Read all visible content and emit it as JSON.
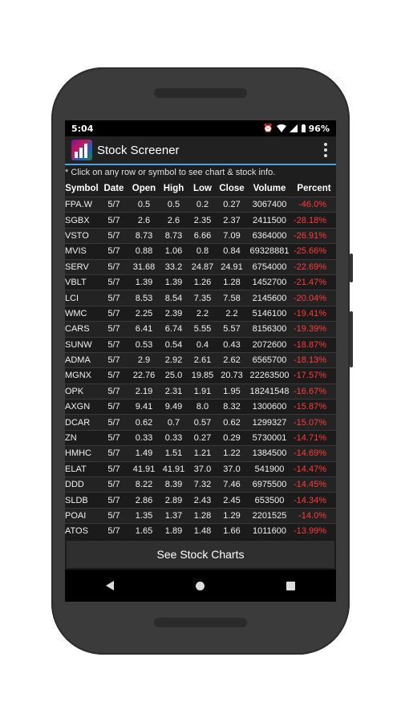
{
  "status": {
    "time": "5:04",
    "battery": "96%"
  },
  "app": {
    "title": "Stock Screener"
  },
  "note": "* Click on any row or symbol to see chart & stock info.",
  "table": {
    "headers": [
      "Symbol",
      "Date",
      "Open",
      "High",
      "Low",
      "Close",
      "Volume",
      "Percent"
    ],
    "rows": [
      [
        "FPA.W",
        "5/7",
        "0.5",
        "0.5",
        "0.2",
        "0.27",
        "3067400",
        "-46.0%"
      ],
      [
        "SGBX",
        "5/7",
        "2.6",
        "2.6",
        "2.35",
        "2.37",
        "2411500",
        "-28.18%"
      ],
      [
        "VSTO",
        "5/7",
        "8.73",
        "8.73",
        "6.66",
        "7.09",
        "6364000",
        "-26.91%"
      ],
      [
        "MVIS",
        "5/7",
        "0.88",
        "1.06",
        "0.8",
        "0.84",
        "69328881",
        "-25.66%"
      ],
      [
        "SERV",
        "5/7",
        "31.68",
        "33.2",
        "24.87",
        "24.91",
        "6754000",
        "-22.69%"
      ],
      [
        "VBLT",
        "5/7",
        "1.39",
        "1.39",
        "1.26",
        "1.28",
        "1452700",
        "-21.47%"
      ],
      [
        "LCI",
        "5/7",
        "8.53",
        "8.54",
        "7.35",
        "7.58",
        "2145600",
        "-20.04%"
      ],
      [
        "WMC",
        "5/7",
        "2.25",
        "2.39",
        "2.2",
        "2.2",
        "5146100",
        "-19.41%"
      ],
      [
        "CARS",
        "5/7",
        "6.41",
        "6.74",
        "5.55",
        "5.57",
        "8156300",
        "-19.39%"
      ],
      [
        "SUNW",
        "5/7",
        "0.53",
        "0.54",
        "0.4",
        "0.43",
        "2072600",
        "-18.87%"
      ],
      [
        "ADMA",
        "5/7",
        "2.9",
        "2.92",
        "2.61",
        "2.62",
        "6565700",
        "-18.13%"
      ],
      [
        "MGNX",
        "5/7",
        "22.76",
        "25.0",
        "19.85",
        "20.73",
        "22263500",
        "-17.57%"
      ],
      [
        "OPK",
        "5/7",
        "2.19",
        "2.31",
        "1.91",
        "1.95",
        "18241548",
        "-16.67%"
      ],
      [
        "AXGN",
        "5/7",
        "9.41",
        "9.49",
        "8.0",
        "8.32",
        "1300600",
        "-15.87%"
      ],
      [
        "DCAR",
        "5/7",
        "0.62",
        "0.7",
        "0.57",
        "0.62",
        "1299327",
        "-15.07%"
      ],
      [
        "ZN",
        "5/7",
        "0.33",
        "0.33",
        "0.27",
        "0.29",
        "5730001",
        "-14.71%"
      ],
      [
        "HMHC",
        "5/7",
        "1.49",
        "1.51",
        "1.21",
        "1.22",
        "1384500",
        "-14.69%"
      ],
      [
        "ELAT",
        "5/7",
        "41.91",
        "41.91",
        "37.0",
        "37.0",
        "541900",
        "-14.47%"
      ],
      [
        "DDD",
        "5/7",
        "8.22",
        "8.39",
        "7.32",
        "7.46",
        "6975500",
        "-14.45%"
      ],
      [
        "SLDB",
        "5/7",
        "2.86",
        "2.89",
        "2.43",
        "2.45",
        "653500",
        "-14.34%"
      ],
      [
        "POAI",
        "5/7",
        "1.35",
        "1.37",
        "1.28",
        "1.29",
        "2201525",
        "-14.0%"
      ],
      [
        "ATOS",
        "5/7",
        "1.65",
        "1.89",
        "1.48",
        "1.66",
        "1011600",
        "-13.99%"
      ]
    ]
  },
  "button": {
    "charts_label": "See Stock Charts"
  },
  "colors": {
    "accent": "#4aa3df",
    "negative": "#ff3b3b"
  },
  "icons": {
    "status": [
      "alarm-icon",
      "wifi-icon",
      "signal-icon",
      "battery-icon"
    ],
    "nav": [
      "back-icon",
      "home-icon",
      "recents-icon"
    ]
  }
}
